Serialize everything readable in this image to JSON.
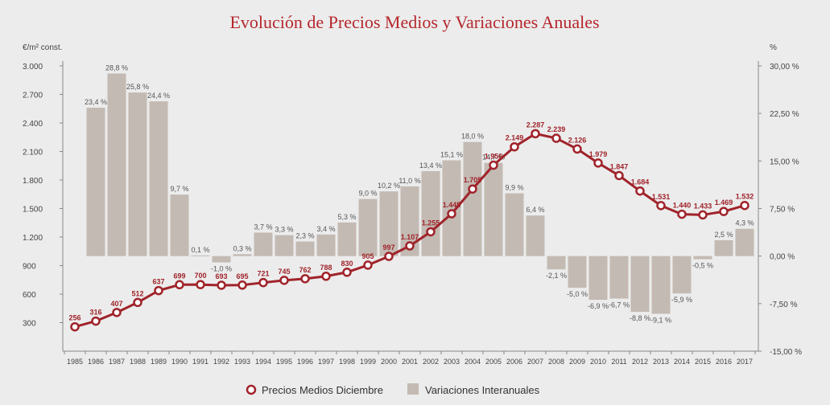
{
  "chart_data": {
    "type": "bar+line",
    "title": "Evolución de Precios Medios y Variaciones Anuales",
    "ylabel_left": "€/m² const.",
    "ylabel_right": "%",
    "ylim_left": [
      0,
      3000
    ],
    "ylim_right": [
      -15,
      30
    ],
    "left_ticks": [
      "3.000",
      "2.700",
      "2.400",
      "2.100",
      "1.800",
      "1.500",
      "1.200",
      "900",
      "600",
      "300"
    ],
    "left_tick_values": [
      3000,
      2700,
      2400,
      2100,
      1800,
      1500,
      1200,
      900,
      600,
      300
    ],
    "right_ticks": [
      "30,00 %",
      "22,50 %",
      "15,00 %",
      "7,50 %",
      "0,00 %",
      "-7,50 %",
      "-15,00 %"
    ],
    "right_tick_values": [
      30,
      22.5,
      15,
      7.5,
      0,
      -7.5,
      -15
    ],
    "categories": [
      "1985",
      "1986",
      "1987",
      "1988",
      "1989",
      "1990",
      "1991",
      "1992",
      "1993",
      "1994",
      "1995",
      "1996",
      "1997",
      "1998",
      "1999",
      "2000",
      "2001",
      "2002",
      "2003",
      "2004",
      "2005",
      "2006",
      "2007",
      "2008",
      "2009",
      "2010",
      "2011",
      "2012",
      "2013",
      "2014",
      "2015",
      "2016",
      "2017"
    ],
    "series": [
      {
        "name": "Precios Medios Diciembre",
        "kind": "line",
        "axis": "left",
        "color": "#a0232a",
        "values": [
          256,
          316,
          407,
          512,
          637,
          699,
          700,
          693,
          695,
          721,
          745,
          762,
          788,
          830,
          905,
          997,
          1107,
          1255,
          1445,
          1705,
          1956,
          2149,
          2287,
          2239,
          2126,
          1979,
          1847,
          1684,
          1531,
          1440,
          1433,
          1469,
          1532
        ],
        "labels": [
          "256",
          "316",
          "407",
          "512",
          "637",
          "699",
          "700",
          "693",
          "695",
          "721",
          "745",
          "762",
          "788",
          "830",
          "905",
          "997",
          "1.107",
          "1.255",
          "1.445",
          "1.705",
          "1.956",
          "2.149",
          "2.287",
          "2.239",
          "2.126",
          "1.979",
          "1.847",
          "1.684",
          "1.531",
          "1.440",
          "1.433",
          "1.469",
          "1.532"
        ]
      },
      {
        "name": "Variaciones Interanuales",
        "kind": "bar",
        "axis": "right",
        "color": "#c3bab3",
        "values": [
          null,
          23.4,
          28.8,
          25.8,
          24.4,
          9.7,
          0.1,
          -1.0,
          0.3,
          3.7,
          3.3,
          2.3,
          3.4,
          5.3,
          9.0,
          10.2,
          11.0,
          13.4,
          15.1,
          18.0,
          14.7,
          9.9,
          6.4,
          -2.1,
          -5.0,
          -6.9,
          -6.7,
          -8.8,
          -9.1,
          -5.9,
          -0.5,
          2.5,
          4.3
        ],
        "labels": [
          null,
          "23,4 %",
          "28,8 %",
          "25,8 %",
          "24,4 %",
          "9,7 %",
          "0,1 %",
          "-1,0 %",
          "0,3 %",
          "3,7 %",
          "3,3 %",
          "2,3 %",
          "3,4 %",
          "5,3 %",
          "9,0 %",
          "10,2 %",
          "11,0 %",
          "13,4 %",
          "15,1 %",
          "18,0 %",
          "14,7 %",
          "9,9 %",
          "6,4 %",
          "-2,1 %",
          "-5,0 %",
          "-6,9 %",
          "-6,7 %",
          "-8,8 %",
          "-9,1 %",
          "-5,9 %",
          "-0,5 %",
          "2,5 %",
          "4,3 %"
        ]
      }
    ],
    "legend": {
      "placement": "bottom-center",
      "items": [
        "Precios Medios Diciembre",
        "Variaciones Interanuales"
      ]
    },
    "grid": false
  }
}
